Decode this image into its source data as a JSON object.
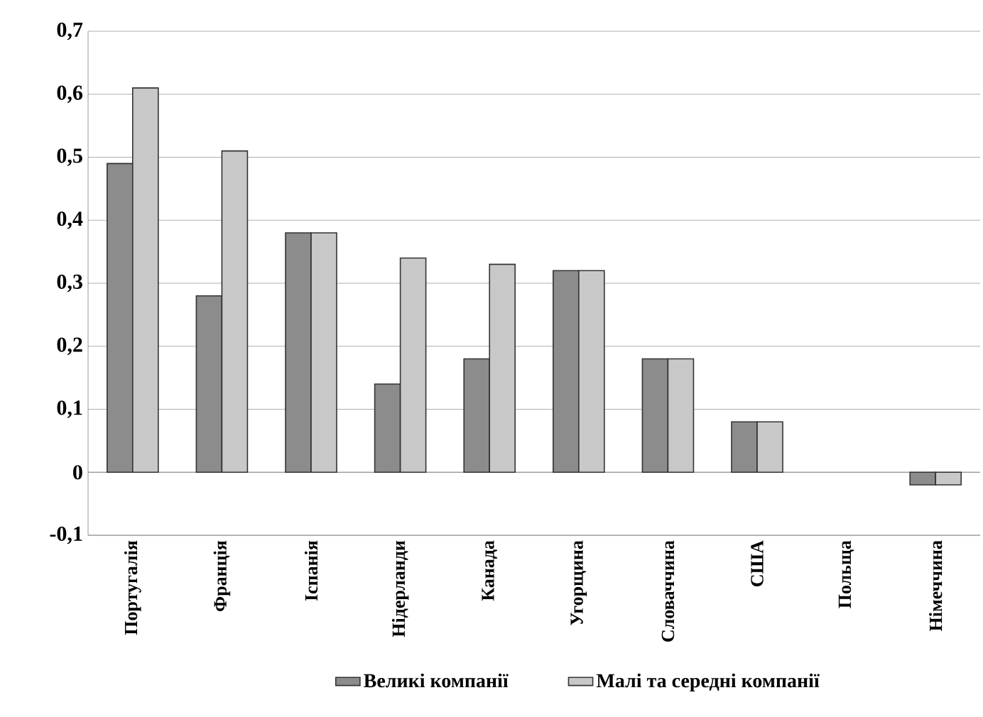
{
  "chart_data": {
    "type": "bar",
    "categories": [
      "Португалія",
      "Франція",
      "Іспанія",
      "Нідерланди",
      "Канада",
      "Угорщина",
      "Словаччина",
      "США",
      "Польща",
      "Німеччина"
    ],
    "series": [
      {
        "name": "Великі компанії",
        "color": "#8c8c8c",
        "values": [
          0.49,
          0.28,
          0.38,
          0.14,
          0.18,
          0.32,
          0.18,
          0.08,
          null,
          -0.02
        ]
      },
      {
        "name": "Малі та середні компанії",
        "color": "#c8c8c8",
        "values": [
          0.61,
          0.51,
          0.38,
          0.34,
          0.33,
          0.32,
          0.18,
          0.08,
          null,
          -0.02
        ]
      }
    ],
    "ylim": [
      -0.1,
      0.7
    ],
    "yticks": [
      {
        "value": -0.1,
        "label": "-0,1"
      },
      {
        "value": 0,
        "label": "0"
      },
      {
        "value": 0.1,
        "label": "0,1"
      },
      {
        "value": 0.2,
        "label": "0,2"
      },
      {
        "value": 0.3,
        "label": "0,3"
      },
      {
        "value": 0.4,
        "label": "0,4"
      },
      {
        "value": 0.5,
        "label": "0,5"
      },
      {
        "value": 0.6,
        "label": "0,6"
      },
      {
        "value": 0.7,
        "label": "0,7"
      }
    ],
    "grid": "y",
    "legend": "bottom"
  }
}
